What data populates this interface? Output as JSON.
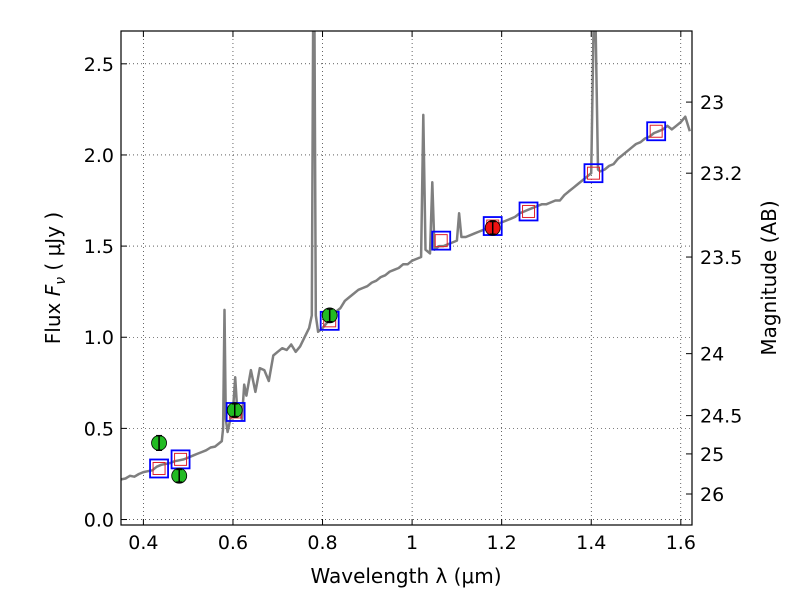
{
  "chart_data": {
    "type": "scatter",
    "xlabel": "Wavelength  λ (μm)",
    "ylabel_left_prefix": "Flux  ",
    "ylabel_left_sym": "F",
    "ylabel_left_sub": "ν",
    "ylabel_left_suffix": "  ( μJy )",
    "ylabel_right": "Magnitude (AB)",
    "xlim": [
      0.35,
      1.625
    ],
    "ylim": [
      -0.03,
      2.68
    ],
    "grid": true,
    "x_ticks": [
      {
        "value": 0.4,
        "label": "0.4"
      },
      {
        "value": 0.6,
        "label": "0.6"
      },
      {
        "value": 0.8,
        "label": "0.8"
      },
      {
        "value": 1.0,
        "label": "1"
      },
      {
        "value": 1.2,
        "label": "1.2"
      },
      {
        "value": 1.4,
        "label": "1.4"
      },
      {
        "value": 1.6,
        "label": "1.6"
      }
    ],
    "y_ticks": [
      {
        "value": 0.0,
        "label": "0.0"
      },
      {
        "value": 0.5,
        "label": "0.5"
      },
      {
        "value": 1.0,
        "label": "1.0"
      },
      {
        "value": 1.5,
        "label": "1.5"
      },
      {
        "value": 2.0,
        "label": "2.0"
      },
      {
        "value": 2.5,
        "label": "2.5"
      }
    ],
    "right_ticks": [
      {
        "flux": 2.29,
        "label": "23"
      },
      {
        "flux": 1.9,
        "label": "23.2"
      },
      {
        "flux": 1.44,
        "label": "23.5"
      },
      {
        "flux": 0.91,
        "label": "24"
      },
      {
        "flux": 0.57,
        "label": "24.5"
      },
      {
        "flux": 0.36,
        "label": "25"
      },
      {
        "flux": 0.14,
        "label": "26"
      }
    ],
    "colors": {
      "spectrum": "#7f7f7f",
      "model_box": "#0000ff",
      "model_inner": "#e0202a",
      "photometry_green": "#22bb22",
      "photometry_red": "#ee1111"
    },
    "spectrum": [
      [
        0.35,
        0.22
      ],
      [
        0.36,
        0.225
      ],
      [
        0.37,
        0.24
      ],
      [
        0.38,
        0.235
      ],
      [
        0.39,
        0.25
      ],
      [
        0.4,
        0.26
      ],
      [
        0.41,
        0.265
      ],
      [
        0.42,
        0.27
      ],
      [
        0.43,
        0.29
      ],
      [
        0.44,
        0.3
      ],
      [
        0.45,
        0.305
      ],
      [
        0.46,
        0.31
      ],
      [
        0.47,
        0.32
      ],
      [
        0.48,
        0.325
      ],
      [
        0.49,
        0.33
      ],
      [
        0.5,
        0.34
      ],
      [
        0.51,
        0.35
      ],
      [
        0.52,
        0.36
      ],
      [
        0.53,
        0.37
      ],
      [
        0.54,
        0.38
      ],
      [
        0.55,
        0.395
      ],
      [
        0.56,
        0.4
      ],
      [
        0.57,
        0.42
      ],
      [
        0.575,
        0.43
      ],
      [
        0.578,
        0.5
      ],
      [
        0.581,
        1.15
      ],
      [
        0.584,
        0.55
      ],
      [
        0.588,
        0.48
      ],
      [
        0.595,
        0.56
      ],
      [
        0.6,
        0.6
      ],
      [
        0.605,
        0.78
      ],
      [
        0.609,
        0.62
      ],
      [
        0.615,
        0.6
      ],
      [
        0.62,
        0.55
      ],
      [
        0.625,
        0.74
      ],
      [
        0.63,
        0.68
      ],
      [
        0.64,
        0.82
      ],
      [
        0.65,
        0.7
      ],
      [
        0.66,
        0.83
      ],
      [
        0.67,
        0.82
      ],
      [
        0.68,
        0.76
      ],
      [
        0.69,
        0.9
      ],
      [
        0.7,
        0.92
      ],
      [
        0.71,
        0.94
      ],
      [
        0.72,
        0.93
      ],
      [
        0.73,
        0.96
      ],
      [
        0.74,
        0.92
      ],
      [
        0.75,
        0.95
      ],
      [
        0.76,
        1.0
      ],
      [
        0.77,
        1.05
      ],
      [
        0.776,
        1.12
      ],
      [
        0.779,
        2.68
      ],
      [
        0.782,
        2.68
      ],
      [
        0.785,
        1.12
      ],
      [
        0.79,
        1.03
      ],
      [
        0.8,
        1.05
      ],
      [
        0.81,
        1.08
      ],
      [
        0.82,
        1.1
      ],
      [
        0.83,
        1.14
      ],
      [
        0.84,
        1.16
      ],
      [
        0.85,
        1.2
      ],
      [
        0.86,
        1.22
      ],
      [
        0.87,
        1.24
      ],
      [
        0.88,
        1.26
      ],
      [
        0.89,
        1.27
      ],
      [
        0.9,
        1.28
      ],
      [
        0.91,
        1.3
      ],
      [
        0.92,
        1.31
      ],
      [
        0.93,
        1.33
      ],
      [
        0.94,
        1.34
      ],
      [
        0.95,
        1.36
      ],
      [
        0.96,
        1.37
      ],
      [
        0.97,
        1.38
      ],
      [
        0.98,
        1.4
      ],
      [
        0.99,
        1.4
      ],
      [
        1.0,
        1.42
      ],
      [
        1.01,
        1.43
      ],
      [
        1.02,
        1.44
      ],
      [
        1.025,
        2.22
      ],
      [
        1.03,
        1.48
      ],
      [
        1.04,
        1.46
      ],
      [
        1.045,
        1.85
      ],
      [
        1.05,
        1.48
      ],
      [
        1.06,
        1.5
      ],
      [
        1.07,
        1.5
      ],
      [
        1.08,
        1.51
      ],
      [
        1.09,
        1.52
      ],
      [
        1.1,
        1.53
      ],
      [
        1.105,
        1.68
      ],
      [
        1.11,
        1.55
      ],
      [
        1.12,
        1.55
      ],
      [
        1.13,
        1.56
      ],
      [
        1.14,
        1.57
      ],
      [
        1.15,
        1.58
      ],
      [
        1.16,
        1.59
      ],
      [
        1.17,
        1.6
      ],
      [
        1.18,
        1.61
      ],
      [
        1.19,
        1.62
      ],
      [
        1.2,
        1.63
      ],
      [
        1.21,
        1.64
      ],
      [
        1.22,
        1.65
      ],
      [
        1.23,
        1.66
      ],
      [
        1.24,
        1.68
      ],
      [
        1.25,
        1.69
      ],
      [
        1.26,
        1.7
      ],
      [
        1.27,
        1.71
      ],
      [
        1.28,
        1.72
      ],
      [
        1.29,
        1.73
      ],
      [
        1.3,
        1.73
      ],
      [
        1.31,
        1.74
      ],
      [
        1.32,
        1.75
      ],
      [
        1.33,
        1.75
      ],
      [
        1.34,
        1.78
      ],
      [
        1.35,
        1.8
      ],
      [
        1.36,
        1.82
      ],
      [
        1.37,
        1.84
      ],
      [
        1.38,
        1.86
      ],
      [
        1.39,
        1.88
      ],
      [
        1.4,
        1.9
      ],
      [
        1.405,
        2.68
      ],
      [
        1.41,
        2.68
      ],
      [
        1.415,
        1.92
      ],
      [
        1.42,
        1.91
      ],
      [
        1.43,
        1.92
      ],
      [
        1.44,
        1.94
      ],
      [
        1.45,
        1.95
      ],
      [
        1.46,
        1.98
      ],
      [
        1.47,
        2.0
      ],
      [
        1.48,
        2.02
      ],
      [
        1.49,
        2.04
      ],
      [
        1.5,
        2.06
      ],
      [
        1.51,
        2.07
      ],
      [
        1.52,
        2.09
      ],
      [
        1.53,
        2.1
      ],
      [
        1.54,
        2.12
      ],
      [
        1.55,
        2.13
      ],
      [
        1.56,
        2.14
      ],
      [
        1.57,
        2.16
      ],
      [
        1.58,
        2.14
      ],
      [
        1.59,
        2.16
      ],
      [
        1.6,
        2.18
      ],
      [
        1.61,
        2.21
      ],
      [
        1.62,
        2.13
      ]
    ],
    "model_points": [
      {
        "x": 0.435,
        "y": 0.28
      },
      {
        "x": 0.483,
        "y": 0.33
      },
      {
        "x": 0.606,
        "y": 0.59
      },
      {
        "x": 0.816,
        "y": 1.09
      },
      {
        "x": 1.065,
        "y": 1.53
      },
      {
        "x": 1.18,
        "y": 1.61
      },
      {
        "x": 1.26,
        "y": 1.69
      },
      {
        "x": 1.405,
        "y": 1.9
      },
      {
        "x": 1.545,
        "y": 2.13
      }
    ],
    "photometry_points": [
      {
        "x": 0.435,
        "y": 0.42,
        "err": 0.04,
        "color": "green"
      },
      {
        "x": 0.48,
        "y": 0.24,
        "err": 0.035,
        "color": "green"
      },
      {
        "x": 0.604,
        "y": 0.6,
        "err": 0.035,
        "color": "green"
      },
      {
        "x": 0.816,
        "y": 1.12,
        "err": 0.035,
        "color": "green"
      },
      {
        "x": 1.18,
        "y": 1.6,
        "err": 0.035,
        "color": "red"
      }
    ]
  }
}
